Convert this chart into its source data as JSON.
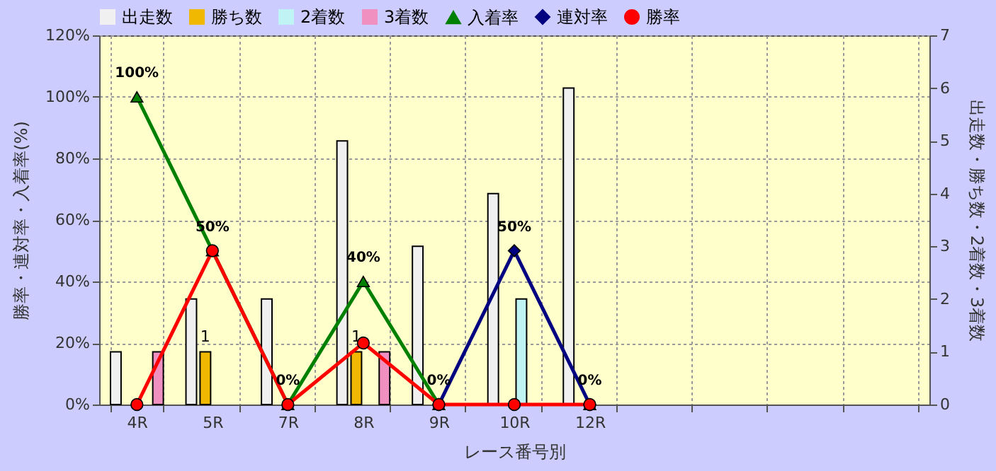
{
  "chart_data": {
    "type": "bar",
    "xlabel": "レース番号別",
    "ylabel": "勝率・連対率・入着率(%)",
    "y2label": "出走数・勝ち数・2着数・3着数",
    "categories": [
      "4R",
      "5R",
      "7R",
      "8R",
      "9R",
      "10R",
      "12R",
      null,
      null,
      null,
      null
    ],
    "series": [
      {
        "name": "出走数",
        "type": "bar",
        "axis": "y2",
        "color": "#f0f0f0",
        "values": [
          1,
          2,
          2,
          5,
          3,
          4,
          6,
          null,
          null,
          null,
          null
        ]
      },
      {
        "name": "勝ち数",
        "type": "bar",
        "axis": "y2",
        "color": "#f0b800",
        "values": [
          0,
          1,
          0,
          1,
          0,
          0,
          0,
          null,
          null,
          null,
          null
        ],
        "value_labels": [
          null,
          "1",
          null,
          "1",
          null,
          null,
          null,
          null,
          null,
          null,
          null
        ]
      },
      {
        "name": "2着数",
        "type": "bar",
        "axis": "y2",
        "color": "#c0f4f4",
        "values": [
          0,
          0,
          0,
          0,
          0,
          2,
          0,
          null,
          null,
          null,
          null
        ]
      },
      {
        "name": "3着数",
        "type": "bar",
        "axis": "y2",
        "color": "#f090c0",
        "values": [
          1,
          0,
          0,
          1,
          0,
          0,
          0,
          null,
          null,
          null,
          null
        ]
      },
      {
        "name": "入着率",
        "type": "line",
        "marker": "triangle",
        "color": "#008000",
        "values": [
          100,
          50,
          0,
          40,
          0,
          null,
          0,
          null,
          null,
          null,
          null
        ],
        "value_labels": [
          "100%",
          "50%",
          "0%",
          "40%",
          "0%",
          null,
          null,
          null,
          null,
          null,
          null
        ]
      },
      {
        "name": "連対率",
        "type": "line",
        "marker": "diamond",
        "color": "#000080",
        "values": [
          null,
          null,
          null,
          null,
          0,
          50,
          0,
          null,
          null,
          null,
          null
        ],
        "value_labels": [
          null,
          null,
          null,
          null,
          null,
          "50%",
          "0%",
          null,
          null,
          null,
          null
        ]
      },
      {
        "name": "勝率",
        "type": "line",
        "marker": "circle",
        "color": "#ff0000",
        "values": [
          0,
          50,
          0,
          20,
          0,
          0,
          0,
          null,
          null,
          null,
          null
        ]
      }
    ],
    "ylim": [
      0,
      120
    ],
    "yticks": [
      {
        "value": 0,
        "label": "0%"
      },
      {
        "value": 20,
        "label": "20%"
      },
      {
        "value": 40,
        "label": "40%"
      },
      {
        "value": 60,
        "label": "60%"
      },
      {
        "value": 80,
        "label": "80%"
      },
      {
        "value": 100,
        "label": "100%"
      },
      {
        "value": 120,
        "label": "120%"
      }
    ],
    "y2lim": [
      0,
      7
    ],
    "y2ticks": [
      0,
      1,
      2,
      3,
      4,
      5,
      6,
      7
    ],
    "grid": true,
    "legend": "top"
  }
}
